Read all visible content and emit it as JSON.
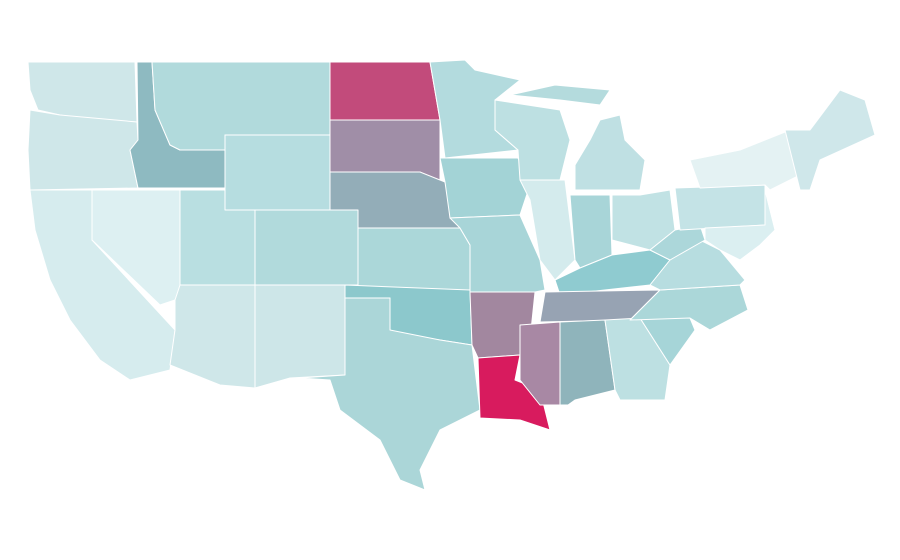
{
  "map": {
    "regions": [
      {
        "fill": "#cfe7e9"
      },
      {
        "fill": "#cfe7e9"
      },
      {
        "fill": "#d6ecee"
      },
      {
        "fill": "#ddf0f2"
      },
      {
        "fill": "#8ebac1"
      },
      {
        "fill": "#b1dadc"
      },
      {
        "fill": "#b6dde0"
      },
      {
        "fill": "#b9dfe1"
      },
      {
        "fill": "#b1dadc"
      },
      {
        "fill": "#cfe7e9"
      },
      {
        "fill": "#cde6e8"
      },
      {
        "fill": "#c24b7b"
      },
      {
        "fill": "#a08ea7"
      },
      {
        "fill": "#93adb8"
      },
      {
        "fill": "#abd7d9"
      },
      {
        "fill": "#8cc8cc"
      },
      {
        "fill": "#abd6d8"
      },
      {
        "fill": "#b3dbde"
      },
      {
        "fill": "#a3d3d6"
      },
      {
        "fill": "#a8d5d8"
      },
      {
        "fill": "#a2879f"
      },
      {
        "fill": "#d81b5e"
      },
      {
        "fill": "#bde0e2"
      },
      {
        "fill": "#d4ebed"
      },
      {
        "fill": "#bfe0e3"
      },
      {
        "fill": "#b4dbdd"
      },
      {
        "fill": "#a8d5d8"
      },
      {
        "fill": "#8fcbd0"
      },
      {
        "fill": "#97a3b3"
      },
      {
        "fill": "#a888a4"
      },
      {
        "fill": "#8fb4bb"
      },
      {
        "fill": "#c1e2e4"
      },
      {
        "fill": "#bde0e2"
      },
      {
        "fill": "#a6d5d8"
      },
      {
        "fill": "#abd7d9"
      },
      {
        "fill": "#b7dde0"
      },
      {
        "fill": "#acd7da"
      },
      {
        "fill": "#c4e3e6"
      },
      {
        "fill": "#e4f2f3"
      },
      {
        "fill": "#cfe7ea"
      },
      {
        "fill": "#dbeff1"
      }
    ]
  }
}
